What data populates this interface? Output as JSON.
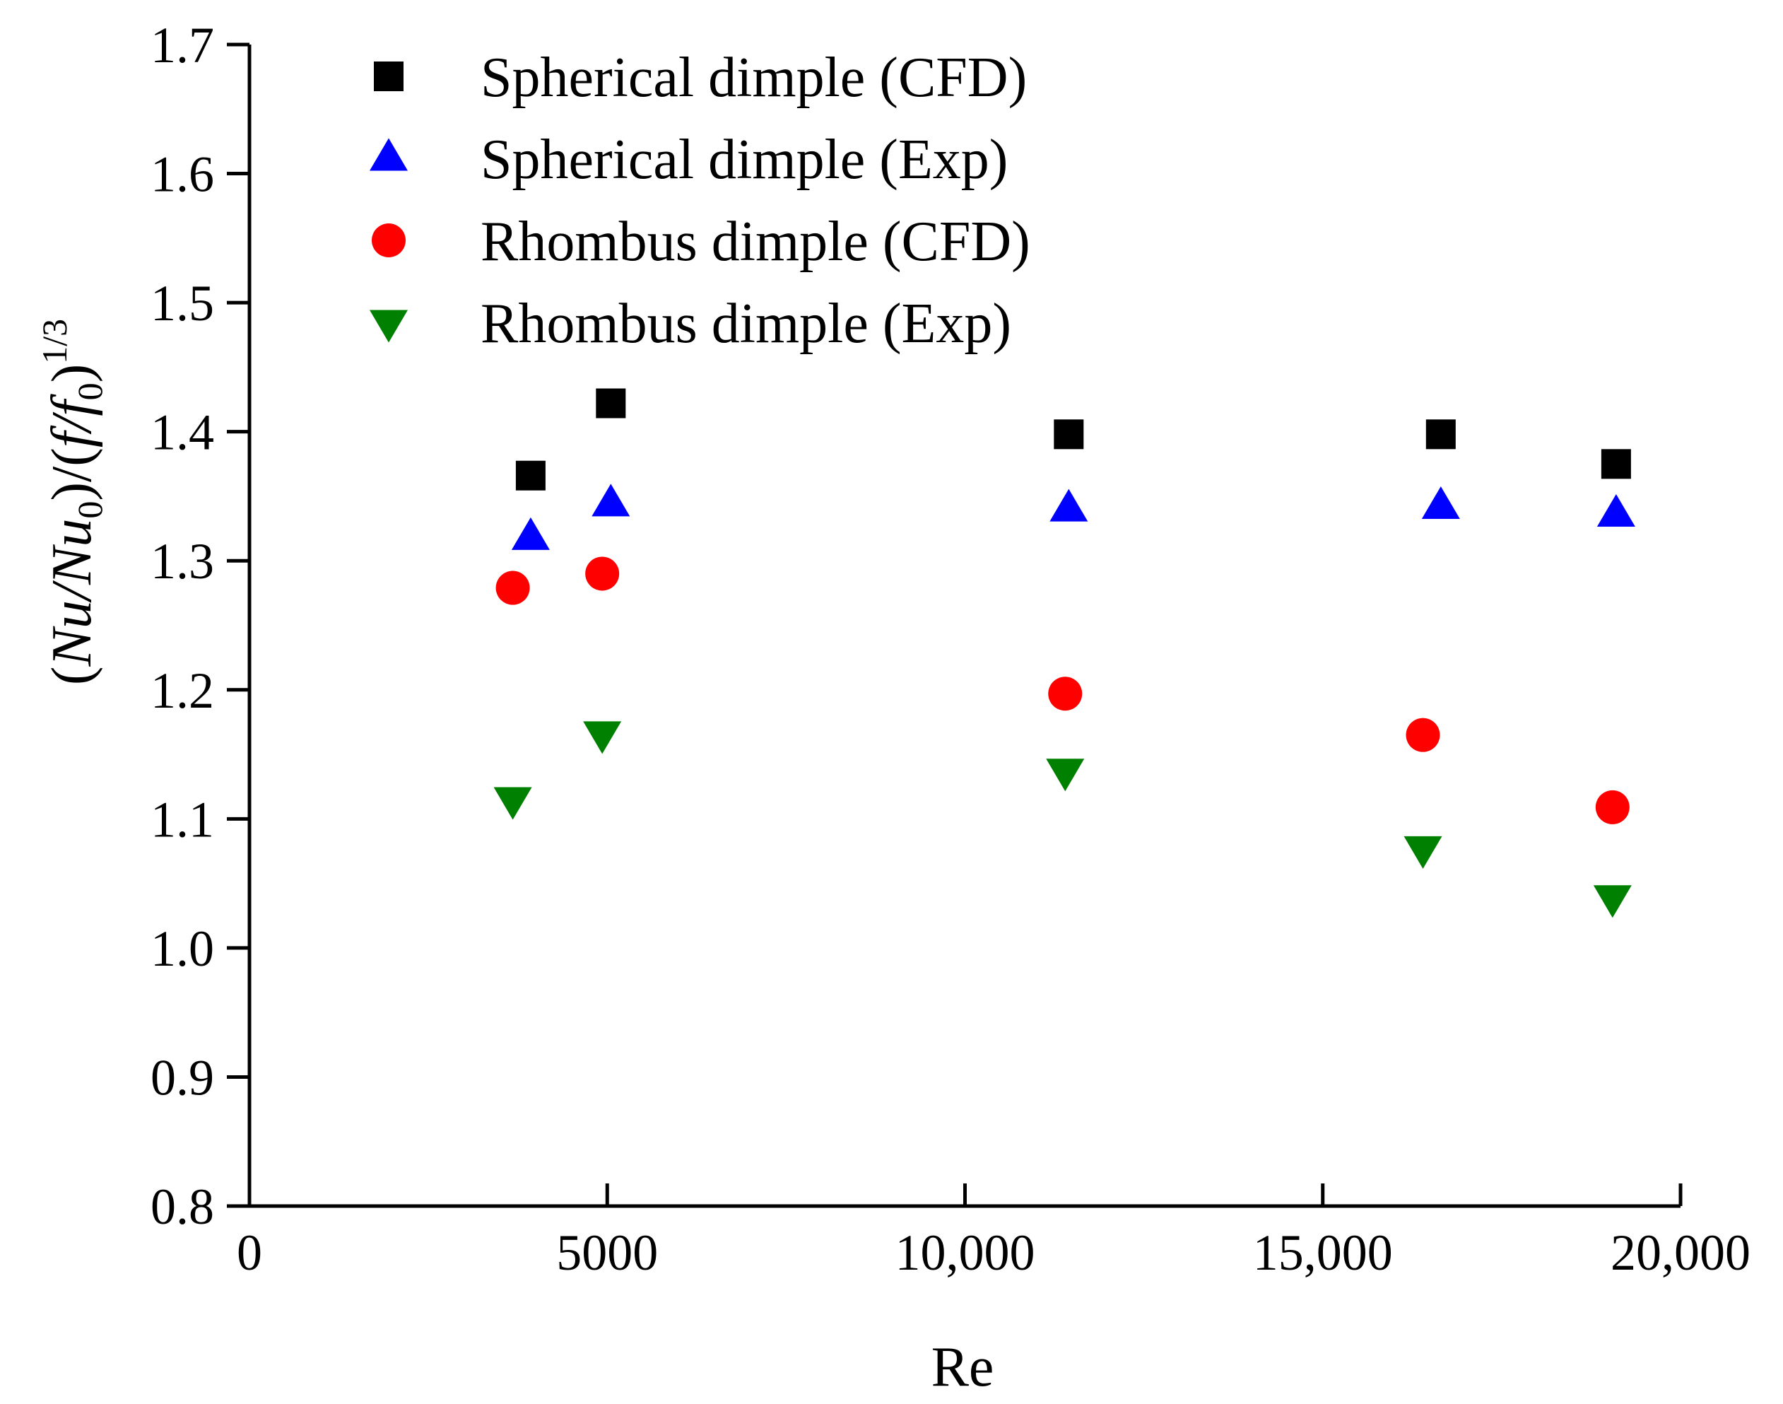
{
  "chart_data": {
    "type": "scatter",
    "xlabel": "Re",
    "ylabel": "(Nu/Nu0)/(f/f0)1/3",
    "ylabel_parts": {
      "open": "(",
      "nu": "Nu",
      "slash1": "/",
      "nu0": "Nu",
      "sub0a": "0",
      "mid": ")/(",
      "f": "f",
      "slash2": "/",
      "f0": "f",
      "sub0b": "0",
      "close": ")",
      "exp": "1/3"
    },
    "xlim": [
      0,
      20000
    ],
    "ylim": [
      0.8,
      1.7
    ],
    "x_ticks": [
      0,
      5000,
      10000,
      15000,
      20000
    ],
    "x_tick_labels": [
      "0",
      "5000",
      "10,000",
      "15,000",
      "20,000"
    ],
    "y_ticks": [
      0.8,
      0.9,
      1.0,
      1.1,
      1.2,
      1.3,
      1.4,
      1.5,
      1.6,
      1.7
    ],
    "y_tick_labels": [
      "0.8",
      "0.9",
      "1.0",
      "1.1",
      "1.2",
      "1.3",
      "1.4",
      "1.5",
      "1.6",
      "1.7"
    ],
    "legend_position": "top-left",
    "series": [
      {
        "name": "Spherical dimple (CFD)",
        "marker": "square",
        "color": "#000000",
        "x": [
          3930,
          5050,
          11450,
          16650,
          19100
        ],
        "y": [
          1.366,
          1.422,
          1.398,
          1.398,
          1.375
        ]
      },
      {
        "name": "Spherical dimple (Exp)",
        "marker": "triangle-up",
        "color": "#0000ff",
        "x": [
          3930,
          5050,
          11450,
          16650,
          19100
        ],
        "y": [
          1.318,
          1.344,
          1.34,
          1.342,
          1.336
        ]
      },
      {
        "name": "Rhombus dimple (CFD)",
        "marker": "circle",
        "color": "#ff0000",
        "x": [
          3680,
          4930,
          11400,
          16400,
          19050
        ],
        "y": [
          1.279,
          1.29,
          1.197,
          1.165,
          1.109
        ]
      },
      {
        "name": "Rhombus dimple (Exp)",
        "marker": "triangle-down",
        "color": "#008000",
        "x": [
          3680,
          4930,
          11400,
          16400,
          19050
        ],
        "y": [
          1.115,
          1.166,
          1.137,
          1.077,
          1.039
        ]
      }
    ]
  }
}
